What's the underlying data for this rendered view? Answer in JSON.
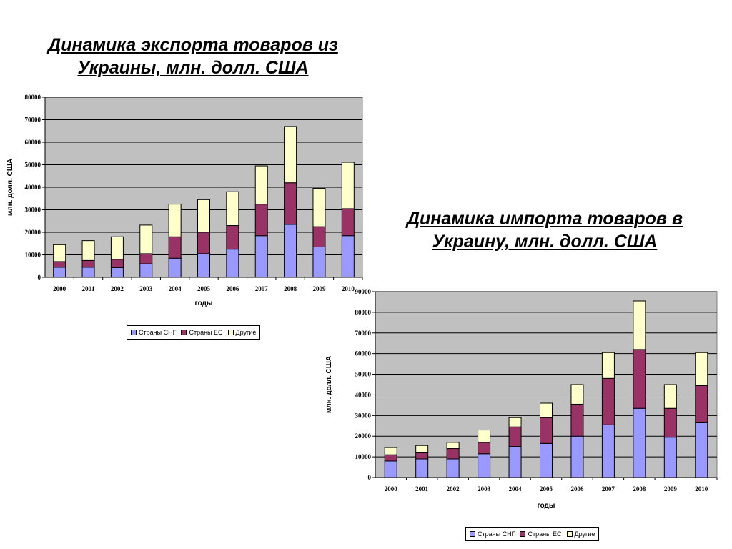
{
  "colors": {
    "cis": "#9999ff",
    "eu": "#993366",
    "other": "#ffffcc",
    "plot_bg": "#c0c0c0"
  },
  "chart_data": [
    {
      "id": "export",
      "type": "bar",
      "stacked": true,
      "title": "Динамика экспорта товаров из Украины, млн. долл. США",
      "xlabel": "годы",
      "ylabel": "млн. долл. США",
      "ylim": [
        0,
        80000
      ],
      "yticks": [
        "0",
        "10000",
        "20000",
        "30000",
        "40000",
        "50000",
        "60000",
        "70000",
        "80000"
      ],
      "categories": [
        "2000",
        "2001",
        "2002",
        "2003",
        "2004",
        "2005",
        "2006",
        "2007",
        "2008",
        "2009",
        "2010"
      ],
      "grid": true,
      "legend_position": "bottom",
      "series": [
        {
          "name": "Страны СНГ",
          "values": [
            4500,
            4500,
            4300,
            6000,
            8500,
            10500,
            12500,
            18500,
            23500,
            13500,
            18500
          ]
        },
        {
          "name": "Страны ЕС",
          "values": [
            2500,
            3000,
            3700,
            4500,
            9500,
            9500,
            10500,
            14000,
            18500,
            9000,
            12000
          ]
        },
        {
          "name": "Другие",
          "values": [
            7500,
            8800,
            10000,
            12700,
            14500,
            14500,
            15000,
            17000,
            25000,
            17000,
            20600
          ]
        }
      ]
    },
    {
      "id": "import",
      "type": "bar",
      "stacked": true,
      "title": "Динамика импорта товаров в Украину, млн. долл. США",
      "xlabel": "годы",
      "ylabel": "млн. долл. США",
      "ylim": [
        0,
        90000
      ],
      "yticks": [
        "0",
        "10000",
        "20000",
        "30000",
        "40000",
        "50000",
        "60000",
        "70000",
        "80000",
        "90000"
      ],
      "categories": [
        "2000",
        "2001",
        "2002",
        "2003",
        "2004",
        "2005",
        "2006",
        "2007",
        "2008",
        "2009",
        "2010"
      ],
      "grid": true,
      "legend_position": "bottom",
      "series": [
        {
          "name": "Страны СНГ",
          "values": [
            8000,
            9000,
            9000,
            11500,
            15000,
            16500,
            20000,
            25500,
            33500,
            19500,
            26500
          ]
        },
        {
          "name": "Страны ЕС",
          "values": [
            3000,
            3000,
            5000,
            5500,
            9500,
            12500,
            15500,
            22500,
            28500,
            14000,
            18000
          ]
        },
        {
          "name": "Другие",
          "values": [
            3500,
            3500,
            3000,
            6000,
            4500,
            7000,
            9500,
            12500,
            23500,
            11500,
            16000
          ]
        }
      ]
    }
  ]
}
